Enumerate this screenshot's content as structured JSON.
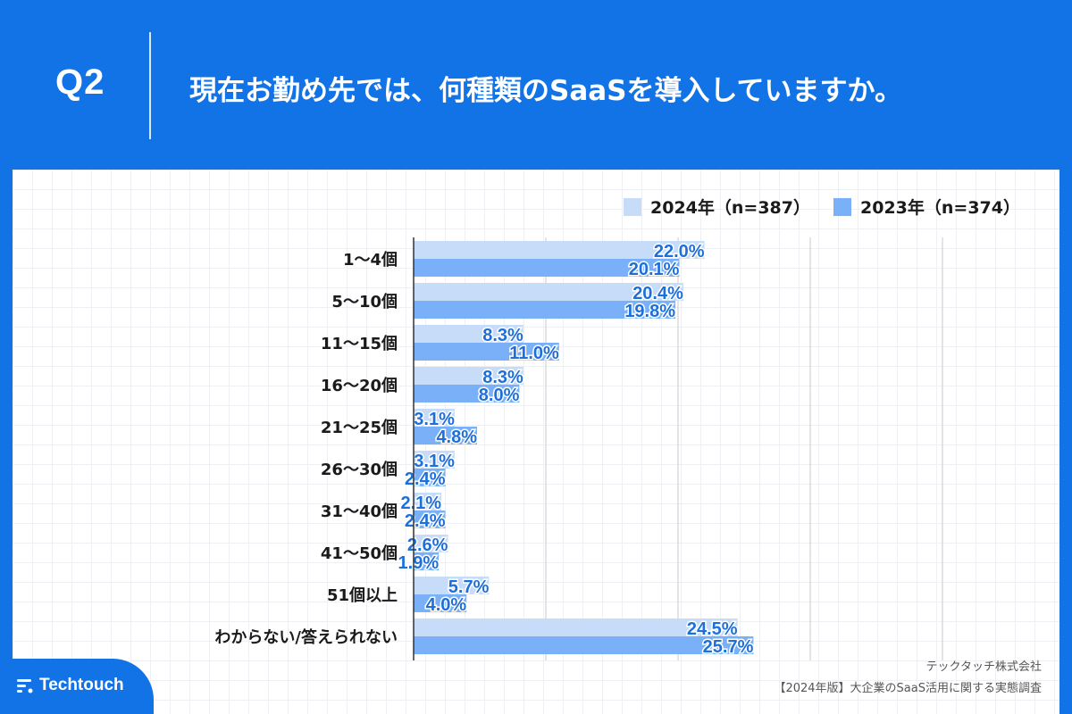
{
  "header": {
    "question": "Q2",
    "title": "現在お勤め先では、何種類のSaaSを導入していますか。"
  },
  "legend": {
    "series_2024": "2024年（n=387）",
    "series_2023": "2023年（n=374）"
  },
  "colors": {
    "background": "#1273e6",
    "series_2024": "#c6dcf8",
    "series_2023": "#7ab0f7",
    "value_text": "#1e6fd9",
    "gridline": "#c8c8c8"
  },
  "chart_data": {
    "type": "bar",
    "orientation": "horizontal",
    "title": "現在お勤め先では、何種類のSaaSを導入していますか。",
    "categories": [
      "1〜4個",
      "5〜10個",
      "11〜15個",
      "16〜20個",
      "21〜25個",
      "26〜30個",
      "31〜40個",
      "41〜50個",
      "51個以上",
      "わからない/答えられない"
    ],
    "series": [
      {
        "name": "2024年（n=387）",
        "values": [
          22.0,
          20.4,
          8.3,
          8.3,
          3.1,
          3.1,
          2.1,
          2.6,
          5.7,
          24.5
        ]
      },
      {
        "name": "2023年（n=374）",
        "values": [
          20.1,
          19.8,
          11.0,
          8.0,
          4.8,
          2.4,
          2.4,
          1.9,
          4.0,
          25.7
        ]
      }
    ],
    "value_suffix": "%",
    "xlim": [
      0,
      40
    ],
    "grid_step": 10,
    "legend_position": "top-right"
  },
  "footer": {
    "company": "テックタッチ株式会社",
    "report": "【2024年版】大企業のSaaS活用に関する実態調査",
    "brand": "Techtouch"
  }
}
